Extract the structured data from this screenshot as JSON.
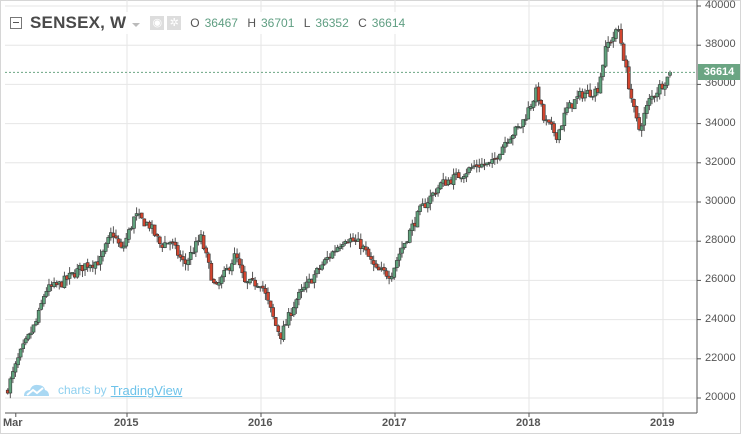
{
  "header": {
    "symbol": "SENSEX, W",
    "ohlc": [
      {
        "label": "O",
        "value": "36467"
      },
      {
        "label": "H",
        "value": "36701"
      },
      {
        "label": "L",
        "value": "36352"
      },
      {
        "label": "C",
        "value": "36614"
      }
    ],
    "icons": [
      "eye-icon",
      "gear-icon"
    ]
  },
  "price_label": "36614",
  "watermark": {
    "prefix": "charts by",
    "brand": "TradingView"
  },
  "colors": {
    "up": "#5fa27c",
    "down": "#d2452f",
    "price_line": "#6ba583",
    "grid": "#e6e6e6"
  },
  "chart_data": {
    "type": "candlestick",
    "title": "SENSEX, W",
    "interval": "weekly",
    "last": {
      "open": 36467,
      "high": 36701,
      "low": 36352,
      "close": 36614
    },
    "ylim": [
      19200,
      40000
    ],
    "yticks": [
      "40000",
      "38000",
      "36000",
      "34000",
      "32000",
      "30000",
      "28000",
      "26000",
      "24000",
      "22000",
      "20000"
    ],
    "xticks": [
      {
        "label": "Mar",
        "year": 2014.17
      },
      {
        "label": "2015",
        "year": 2015
      },
      {
        "label": "2016",
        "year": 2016
      },
      {
        "label": "2017",
        "year": 2017
      },
      {
        "label": "2018",
        "year": 2018
      },
      {
        "label": "2019",
        "year": 2019
      }
    ],
    "close_path": [
      [
        2014.11,
        20500
      ],
      [
        2014.2,
        22200
      ],
      [
        2014.33,
        24000
      ],
      [
        2014.39,
        25500
      ],
      [
        2014.5,
        25800
      ],
      [
        2014.69,
        26800
      ],
      [
        2014.8,
        27000
      ],
      [
        2014.89,
        28500
      ],
      [
        2014.96,
        27500
      ],
      [
        2015.06,
        29300
      ],
      [
        2015.17,
        28800
      ],
      [
        2015.25,
        27800
      ],
      [
        2015.32,
        28000
      ],
      [
        2015.43,
        26800
      ],
      [
        2015.55,
        28200
      ],
      [
        2015.66,
        25500
      ],
      [
        2015.81,
        27300
      ],
      [
        2015.88,
        25800
      ],
      [
        2016.0,
        25900
      ],
      [
        2016.11,
        23700
      ],
      [
        2016.15,
        23200
      ],
      [
        2016.26,
        25000
      ],
      [
        2016.37,
        26000
      ],
      [
        2016.48,
        27000
      ],
      [
        2016.63,
        28200
      ],
      [
        2016.75,
        27800
      ],
      [
        2016.86,
        26500
      ],
      [
        2016.97,
        26300
      ],
      [
        2017.04,
        27500
      ],
      [
        2017.19,
        29600
      ],
      [
        2017.34,
        30900
      ],
      [
        2017.49,
        31400
      ],
      [
        2017.61,
        31900
      ],
      [
        2017.72,
        31900
      ],
      [
        2017.83,
        33200
      ],
      [
        2017.94,
        33900
      ],
      [
        2018.06,
        35700
      ],
      [
        2018.11,
        34200
      ],
      [
        2018.21,
        33400
      ],
      [
        2018.28,
        34700
      ],
      [
        2018.39,
        35500
      ],
      [
        2018.51,
        35700
      ],
      [
        2018.58,
        38000
      ],
      [
        2018.67,
        38800
      ],
      [
        2018.73,
        36500
      ],
      [
        2018.79,
        34400
      ],
      [
        2018.82,
        33700
      ],
      [
        2018.9,
        35200
      ],
      [
        2018.99,
        36000
      ],
      [
        2019.07,
        36614
      ]
    ]
  }
}
